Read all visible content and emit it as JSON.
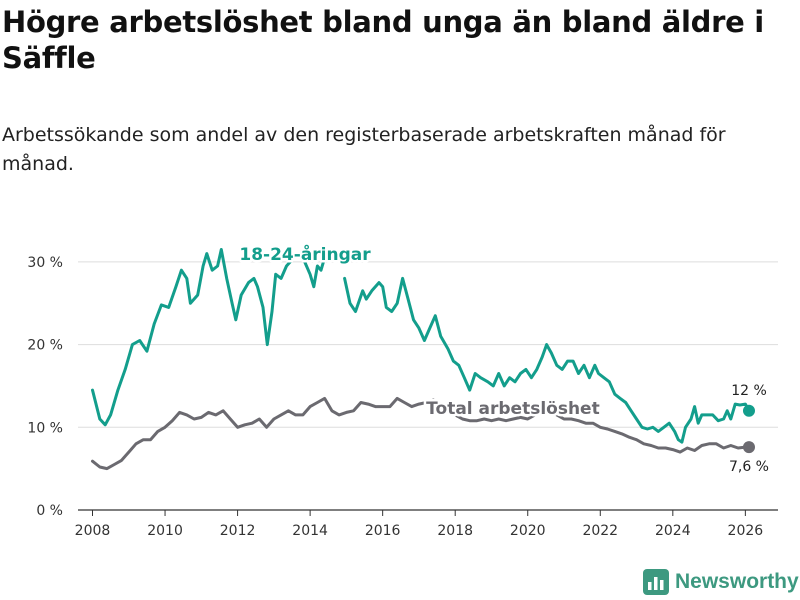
{
  "chart_data": {
    "type": "line",
    "title": "Högre arbetslöshet bland unga än bland äldre i Säffle",
    "subtitle": "Arbetssökande som andel av den registerbaserade arbetskraften månad för månad.",
    "xlabel": "",
    "ylabel": "",
    "xlim": [
      2007.6,
      2026.9
    ],
    "ylim": [
      0,
      30
    ],
    "x_ticks": [
      2008,
      2010,
      2012,
      2014,
      2016,
      2018,
      2020,
      2022,
      2024,
      2026
    ],
    "x_tick_labels": [
      "2008",
      "2010",
      "2012",
      "2014",
      "2016",
      "2018",
      "2020",
      "2022",
      "2024",
      "2026"
    ],
    "y_ticks": [
      0,
      10,
      20,
      30
    ],
    "y_tick_labels": [
      "0 %",
      "10 %",
      "20 %",
      "30 %"
    ],
    "grid": true,
    "series": [
      {
        "name": "18-24-åringar",
        "color": "#139e8c",
        "end_label": "12 %",
        "points": [
          [
            2008.0,
            14.5
          ],
          [
            2008.2,
            11.0
          ],
          [
            2008.35,
            10.3
          ],
          [
            2008.5,
            11.5
          ],
          [
            2008.7,
            14.5
          ],
          [
            2008.9,
            17.0
          ],
          [
            2009.1,
            20.0
          ],
          [
            2009.3,
            20.5
          ],
          [
            2009.5,
            19.2
          ],
          [
            2009.7,
            22.5
          ],
          [
            2009.9,
            24.8
          ],
          [
            2010.1,
            24.5
          ],
          [
            2010.3,
            27.0
          ],
          [
            2010.45,
            29.0
          ],
          [
            2010.6,
            28.0
          ],
          [
            2010.7,
            25.0
          ],
          [
            2010.9,
            26.0
          ],
          [
            2011.05,
            29.5
          ],
          [
            2011.15,
            31.0
          ],
          [
            2011.3,
            29.0
          ],
          [
            2011.45,
            29.5
          ],
          [
            2011.55,
            31.5
          ],
          [
            2011.7,
            28.0
          ],
          [
            2011.85,
            25.0
          ],
          [
            2011.95,
            23.0
          ],
          [
            2012.1,
            26.0
          ],
          [
            2012.3,
            27.5
          ],
          [
            2012.45,
            28.0
          ],
          [
            2012.55,
            27.0
          ],
          [
            2012.7,
            24.5
          ],
          [
            2012.82,
            20.0
          ],
          [
            2012.95,
            24.0
          ],
          [
            2013.05,
            28.5
          ],
          [
            2013.2,
            28.0
          ],
          [
            2013.35,
            29.5
          ],
          [
            2013.45,
            30.0
          ]
        ],
        "points_2": [
          [
            2013.85,
            30.0
          ],
          [
            2014.0,
            28.5
          ],
          [
            2014.1,
            27.0
          ],
          [
            2014.2,
            29.5
          ],
          [
            2014.3,
            29.0
          ],
          [
            2014.4,
            30.5
          ]
        ],
        "points_3": [
          [
            2014.95,
            28.0
          ],
          [
            2015.1,
            25.0
          ],
          [
            2015.25,
            24.0
          ],
          [
            2015.45,
            26.5
          ],
          [
            2015.55,
            25.5
          ],
          [
            2015.7,
            26.5
          ],
          [
            2015.9,
            27.5
          ],
          [
            2016.0,
            27.0
          ],
          [
            2016.1,
            24.5
          ],
          [
            2016.25,
            24.0
          ],
          [
            2016.4,
            25.0
          ],
          [
            2016.55,
            28.0
          ],
          [
            2016.7,
            25.5
          ],
          [
            2016.85,
            23.0
          ],
          [
            2017.0,
            22.0
          ],
          [
            2017.15,
            20.5
          ],
          [
            2017.3,
            22.0
          ],
          [
            2017.45,
            23.5
          ],
          [
            2017.6,
            21.0
          ],
          [
            2017.8,
            19.5
          ],
          [
            2017.95,
            18.0
          ],
          [
            2018.1,
            17.5
          ],
          [
            2018.25,
            16.0
          ],
          [
            2018.4,
            14.5
          ],
          [
            2018.55,
            16.5
          ],
          [
            2018.7,
            16.0
          ],
          [
            2018.9,
            15.5
          ],
          [
            2019.05,
            15.0
          ],
          [
            2019.2,
            16.5
          ],
          [
            2019.35,
            15.0
          ],
          [
            2019.5,
            16.0
          ],
          [
            2019.65,
            15.5
          ],
          [
            2019.8,
            16.5
          ],
          [
            2019.95,
            17.0
          ],
          [
            2020.1,
            16.0
          ],
          [
            2020.25,
            17.0
          ],
          [
            2020.4,
            18.5
          ],
          [
            2020.52,
            20.0
          ],
          [
            2020.65,
            19.0
          ],
          [
            2020.8,
            17.5
          ],
          [
            2020.95,
            17.0
          ],
          [
            2021.1,
            18.0
          ],
          [
            2021.25,
            18.0
          ],
          [
            2021.4,
            16.5
          ],
          [
            2021.55,
            17.5
          ],
          [
            2021.7,
            16.0
          ],
          [
            2021.85,
            17.5
          ],
          [
            2021.95,
            16.5
          ],
          [
            2022.1,
            16.0
          ],
          [
            2022.25,
            15.5
          ],
          [
            2022.4,
            14.0
          ],
          [
            2022.55,
            13.5
          ],
          [
            2022.7,
            13.0
          ],
          [
            2022.85,
            12.0
          ],
          [
            2023.0,
            11.0
          ],
          [
            2023.15,
            10.0
          ],
          [
            2023.3,
            9.8
          ],
          [
            2023.45,
            10.0
          ],
          [
            2023.6,
            9.5
          ],
          [
            2023.75,
            10.0
          ],
          [
            2023.9,
            10.5
          ],
          [
            2024.05,
            9.5
          ],
          [
            2024.15,
            8.5
          ],
          [
            2024.25,
            8.2
          ],
          [
            2024.35,
            10.0
          ],
          [
            2024.5,
            11.0
          ],
          [
            2024.6,
            12.5
          ],
          [
            2024.7,
            10.5
          ],
          [
            2024.8,
            11.5
          ],
          [
            2024.95,
            11.5
          ],
          [
            2025.1,
            11.5
          ],
          [
            2025.25,
            10.8
          ],
          [
            2025.4,
            11.0
          ],
          [
            2025.5,
            12.0
          ],
          [
            2025.6,
            11.0
          ],
          [
            2025.72,
            12.8
          ],
          [
            2025.85,
            12.7
          ],
          [
            2026.0,
            12.8
          ],
          [
            2026.1,
            12.0
          ]
        ]
      },
      {
        "name": "Total arbetslöshet",
        "color": "#6b6a70",
        "end_label": "7,6 %",
        "points": [
          [
            2008.0,
            5.9
          ],
          [
            2008.2,
            5.2
          ],
          [
            2008.4,
            5.0
          ],
          [
            2008.6,
            5.5
          ],
          [
            2008.8,
            6.0
          ],
          [
            2009.0,
            7.0
          ],
          [
            2009.2,
            8.0
          ],
          [
            2009.4,
            8.5
          ],
          [
            2009.6,
            8.5
          ],
          [
            2009.8,
            9.5
          ],
          [
            2010.0,
            10.0
          ],
          [
            2010.2,
            10.8
          ],
          [
            2010.4,
            11.8
          ],
          [
            2010.6,
            11.5
          ],
          [
            2010.8,
            11.0
          ],
          [
            2011.0,
            11.2
          ],
          [
            2011.2,
            11.8
          ],
          [
            2011.4,
            11.5
          ],
          [
            2011.6,
            12.0
          ],
          [
            2011.8,
            11.0
          ],
          [
            2012.0,
            10.0
          ],
          [
            2012.2,
            10.3
          ],
          [
            2012.4,
            10.5
          ],
          [
            2012.6,
            11.0
          ],
          [
            2012.8,
            10.0
          ],
          [
            2013.0,
            11.0
          ],
          [
            2013.2,
            11.5
          ],
          [
            2013.4,
            12.0
          ],
          [
            2013.6,
            11.5
          ],
          [
            2013.8,
            11.5
          ],
          [
            2014.0,
            12.5
          ],
          [
            2014.2,
            13.0
          ],
          [
            2014.4,
            13.5
          ],
          [
            2014.6,
            12.0
          ],
          [
            2014.8,
            11.5
          ],
          [
            2015.0,
            11.8
          ],
          [
            2015.2,
            12.0
          ],
          [
            2015.4,
            13.0
          ],
          [
            2015.6,
            12.8
          ],
          [
            2015.8,
            12.5
          ],
          [
            2016.0,
            12.5
          ],
          [
            2016.2,
            12.5
          ],
          [
            2016.4,
            13.5
          ],
          [
            2016.6,
            13.0
          ],
          [
            2016.8,
            12.5
          ],
          [
            2017.0,
            12.8
          ],
          [
            2017.2,
            13.0
          ],
          [
            2017.4,
            13.3
          ],
          [
            2017.6,
            12.8
          ],
          [
            2017.8,
            12.0
          ],
          [
            2018.0,
            11.5
          ],
          [
            2018.2,
            11.0
          ],
          [
            2018.4,
            10.8
          ],
          [
            2018.6,
            10.8
          ],
          [
            2018.8,
            11.0
          ],
          [
            2019.0,
            10.8
          ],
          [
            2019.2,
            11.0
          ],
          [
            2019.4,
            10.8
          ],
          [
            2019.6,
            11.0
          ],
          [
            2019.8,
            11.2
          ],
          [
            2020.0,
            11.0
          ],
          [
            2020.2,
            11.5
          ],
          [
            2020.4,
            12.0
          ],
          [
            2020.6,
            12.0
          ],
          [
            2020.8,
            11.5
          ],
          [
            2021.0,
            11.0
          ],
          [
            2021.2,
            11.0
          ],
          [
            2021.4,
            10.8
          ],
          [
            2021.6,
            10.5
          ],
          [
            2021.8,
            10.5
          ],
          [
            2022.0,
            10.0
          ],
          [
            2022.2,
            9.8
          ],
          [
            2022.4,
            9.5
          ],
          [
            2022.6,
            9.2
          ],
          [
            2022.8,
            8.8
          ],
          [
            2023.0,
            8.5
          ],
          [
            2023.2,
            8.0
          ],
          [
            2023.4,
            7.8
          ],
          [
            2023.6,
            7.5
          ],
          [
            2023.8,
            7.5
          ],
          [
            2024.0,
            7.3
          ],
          [
            2024.2,
            7.0
          ],
          [
            2024.4,
            7.5
          ],
          [
            2024.6,
            7.2
          ],
          [
            2024.8,
            7.8
          ],
          [
            2025.0,
            8.0
          ],
          [
            2025.2,
            8.0
          ],
          [
            2025.4,
            7.5
          ],
          [
            2025.6,
            7.8
          ],
          [
            2025.8,
            7.5
          ],
          [
            2026.0,
            7.6
          ],
          [
            2026.1,
            7.6
          ]
        ]
      }
    ],
    "annotations": [
      {
        "text": "18-24-åringar",
        "x": 2012.05,
        "y": 30.2,
        "color": "#139e8c"
      },
      {
        "text": "Total arbetslöshet",
        "x": 2017.2,
        "y": 11.6,
        "color": "#6b6a70"
      }
    ]
  },
  "branding": {
    "logo_text": "Newsworthy",
    "logo_color": "#3d9980"
  }
}
